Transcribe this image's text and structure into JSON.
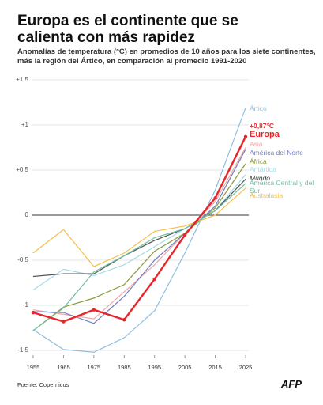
{
  "chart_data": {
    "type": "line",
    "title": "Europa es el continente que se calienta con más rapidez",
    "subtitle": "Anomalías de temperatura (°C) en promedios de 10 años para los siete continentes, más la región del Ártico, en comparación al promedio 1991-2020",
    "source": "Fuente: Copernicus",
    "logo": "AFP",
    "x": [
      1955,
      1965,
      1975,
      1985,
      1995,
      2005,
      2015,
      2025
    ],
    "xlim": [
      1955,
      2025
    ],
    "xticks": [
      1955,
      1965,
      1975,
      1985,
      1995,
      2005,
      2015,
      2025
    ],
    "ylim": [
      -1.5,
      1.5
    ],
    "yticks": [
      {
        "value": -1.5,
        "label": "-1,5"
      },
      -1,
      {
        "value": -0.5,
        "label": "-0,5"
      },
      0,
      {
        "value": 0.5,
        "label": "+0,5"
      },
      {
        "value": 1,
        "label": "+1"
      },
      {
        "value": 1.5,
        "label": "+1,5"
      }
    ],
    "grid": true,
    "series": [
      {
        "name": "Ártico",
        "color": "#8fbfe0",
        "values": [
          -1.27,
          -1.49,
          -1.52,
          -1.36,
          -1.06,
          -0.42,
          0.28,
          1.19
        ]
      },
      {
        "name": "Asia",
        "color": "#f2a6a6",
        "values": [
          -1.05,
          -1.1,
          -1.15,
          -0.85,
          -0.55,
          -0.2,
          0.15,
          0.75
        ]
      },
      {
        "name": "América del Norte",
        "color": "#6f7fc0",
        "values": [
          -1.07,
          -1.08,
          -1.2,
          -0.9,
          -0.5,
          -0.2,
          0.1,
          0.73
        ]
      },
      {
        "name": "África",
        "color": "#8a9a3c",
        "values": [
          -1.28,
          -1.02,
          -0.92,
          -0.77,
          -0.4,
          -0.2,
          0.08,
          0.57
        ]
      },
      {
        "name": "Antártida",
        "color": "#a7dbe6",
        "values": [
          -0.83,
          -0.6,
          -0.67,
          -0.55,
          -0.35,
          -0.15,
          0.05,
          0.45
        ]
      },
      {
        "name": "Mundo",
        "color": "#555555",
        "values": [
          -0.68,
          -0.65,
          -0.65,
          -0.45,
          -0.28,
          -0.15,
          0.05,
          0.4
        ]
      },
      {
        "name": "América Central y del Sur",
        "color": "#6fbfa0",
        "values": [
          -1.28,
          -1.03,
          -0.63,
          -0.45,
          -0.25,
          -0.15,
          0.05,
          0.35
        ]
      },
      {
        "name": "Australasia",
        "color": "#f5c04a",
        "values": [
          -0.42,
          -0.16,
          -0.57,
          -0.42,
          -0.18,
          -0.12,
          0.0,
          0.3
        ]
      },
      {
        "name": "Europa",
        "color": "#e8262a",
        "values": [
          -1.08,
          -1.18,
          -1.05,
          -1.16,
          -0.71,
          -0.22,
          0.19,
          0.87
        ],
        "value_labels": [
          null,
          null,
          null,
          null,
          null,
          null,
          null,
          "+0,87°C"
        ]
      }
    ]
  }
}
